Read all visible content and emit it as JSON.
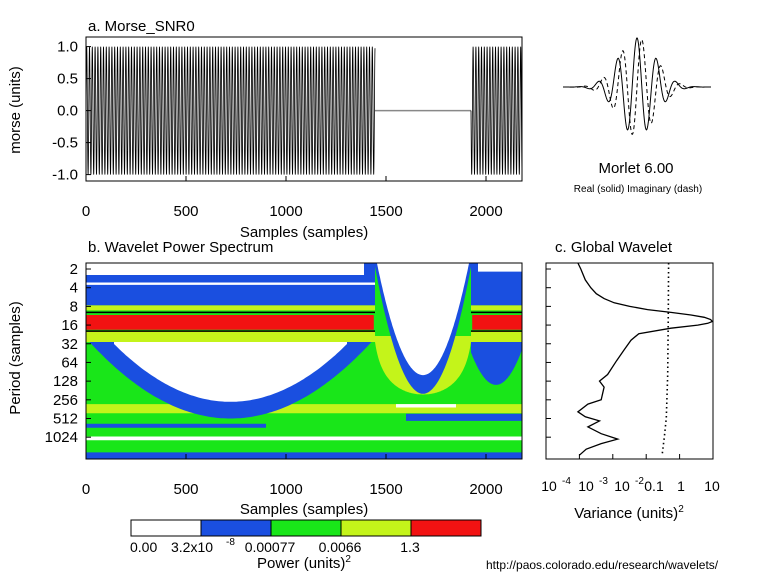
{
  "colors": {
    "white": "#ffffff",
    "blue": "#1a4fe0",
    "green": "#19e619",
    "yellowgreen": "#c4f41a",
    "red": "#f21212",
    "black": "#000000",
    "gray": "#888888"
  },
  "chart_data": [
    {
      "id": "a",
      "type": "line",
      "title": "a. Morse_SNR0",
      "xlabel": "Samples (samples)",
      "ylabel": "morse (units)",
      "xlim": [
        0,
        2180
      ],
      "ylim": [
        -1.1,
        1.15
      ],
      "xticks": [
        0,
        500,
        1000,
        1500,
        2000
      ],
      "yticks": [
        -1.0,
        -0.5,
        0.0,
        0.5,
        1.0
      ],
      "ytick_labels": [
        "-1.0",
        "-0.5",
        "0.0",
        "0.5",
        "1.0"
      ],
      "segments": [
        {
          "name": "oscillation",
          "x": [
            0,
            1445
          ],
          "amplitude": 1.0,
          "period_samples": 14
        },
        {
          "name": "gap",
          "x": [
            1445,
            1925
          ],
          "value": 0.0
        },
        {
          "name": "oscillation",
          "x": [
            1925,
            2180
          ],
          "amplitude": 1.0,
          "period_samples": 14
        }
      ]
    },
    {
      "id": "morlet",
      "type": "line",
      "title": "Morlet 6.00",
      "subtitle": "Real (solid)  Imaginary (dash)",
      "series": [
        {
          "name": "Real",
          "style": "solid"
        },
        {
          "name": "Imaginary",
          "style": "dash"
        }
      ],
      "omega0": 6.0
    },
    {
      "id": "b",
      "type": "heatmap",
      "title": "b. Wavelet Power Spectrum",
      "xlabel": "Samples (samples)",
      "ylabel": "Period (samples)",
      "xlim": [
        0,
        2180
      ],
      "ylim": [
        1.6,
        2300
      ],
      "yscale": "log2",
      "xticks": [
        0,
        500,
        1000,
        1500,
        2000
      ],
      "yticks": [
        2,
        4,
        8,
        16,
        32,
        64,
        128,
        256,
        512,
        1024
      ],
      "levels": [
        0.0,
        3.2e-08,
        0.00077,
        0.0066,
        1.3
      ],
      "band": {
        "period_low": 9,
        "period_high": 20,
        "gap_x": [
          1445,
          1925
        ]
      },
      "cone_of_influence": true
    },
    {
      "id": "c",
      "type": "line",
      "title": "c. Global Wavelet",
      "xlabel": "Variance (units)",
      "xscale": "log10",
      "xlim": [
        0.0001,
        10
      ],
      "xtick_labels": [
        "10",
        "-4",
        "10",
        "-3",
        "10",
        "-2",
        "0.1",
        "1",
        "10"
      ],
      "series": [
        {
          "name": "global",
          "style": "solid",
          "period": [
            1.6,
            2,
            3,
            4,
            5,
            6,
            7,
            8,
            9,
            10,
            11,
            12,
            13,
            14,
            15,
            16,
            18,
            22,
            28,
            40,
            60,
            100,
            128,
            160,
            200,
            256,
            300,
            400,
            480,
            560,
            700,
            900,
            1100,
            1300,
            1600,
            2000
          ],
          "variance": [
            0.0009,
            0.0011,
            0.0015,
            0.0022,
            0.0032,
            0.0055,
            0.011,
            0.032,
            0.11,
            0.55,
            2.2,
            5.5,
            8.5,
            9.5,
            7.0,
            3.5,
            0.55,
            0.06,
            0.035,
            0.022,
            0.013,
            0.007,
            0.004,
            0.0055,
            0.005,
            0.0045,
            0.0018,
            0.0009,
            0.0015,
            0.004,
            0.0018,
            0.0045,
            0.014,
            0.0045,
            0.0016,
            0.001
          ]
        },
        {
          "name": "significance",
          "style": "dotted",
          "period": [
            1.6,
            10,
            100,
            500,
            1000,
            2000
          ],
          "variance": [
            0.47,
            0.46,
            0.44,
            0.4,
            0.35,
            0.3
          ]
        }
      ]
    },
    {
      "id": "colorbar",
      "type": "colorbar",
      "title": "Power (units)",
      "title_sup": "2",
      "labels": [
        "0.00",
        "3.2x10",
        "-8",
        "0.00077",
        "0.0066",
        "1.3"
      ],
      "colors": [
        "#ffffff",
        "#1a4fe0",
        "#19e619",
        "#c4f41a",
        "#f21212"
      ]
    }
  ],
  "labels": {
    "c_xlabel_sup": "2",
    "footer": "http://paos.colorado.edu/research/wavelets/"
  }
}
